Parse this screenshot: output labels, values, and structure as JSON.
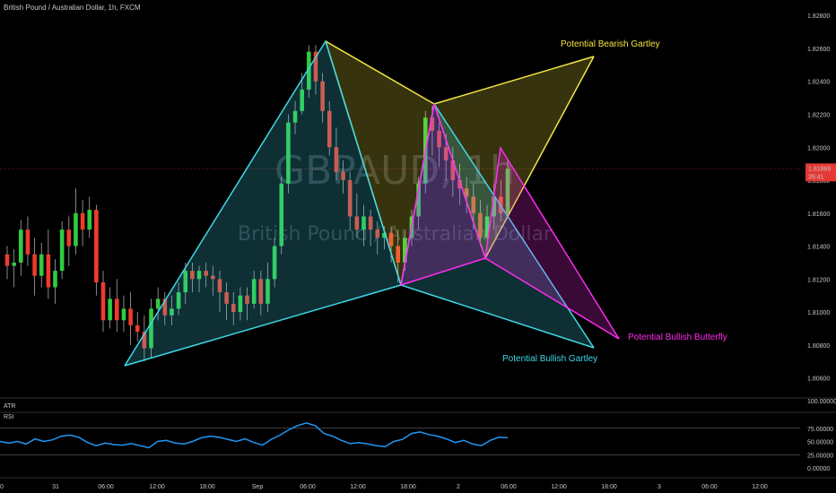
{
  "header": {
    "title": "British Pound / Australian Dollar, 1h, FXCM"
  },
  "watermark": {
    "symbol": "GBPAUD, 1h",
    "name": "British Pound / Australian Dollar"
  },
  "colors": {
    "up": "#26a69a",
    "up_bright": "#2ecc40",
    "down": "#ef3b2c",
    "bearish_pattern": "#f5e642",
    "bullish_gartley": "#3fd8e8",
    "bullish_butterfly": "#ff2cf1",
    "rsi_line": "#2196f3",
    "price_label": "#e53935"
  },
  "chart_data": [
    {
      "type": "candlestick",
      "symbol": "GBPAUD",
      "timeframe": "1h",
      "x_tick_labels": [
        "0",
        "31",
        "06:00",
        "12:00",
        "18:00",
        "Sep",
        "06:00",
        "12:00",
        "18:00",
        "2",
        "06:00",
        "12:00",
        "18:00",
        "3",
        "06:00",
        "12:00"
      ],
      "y_tick_labels": [
        "1.82800",
        "1.82600",
        "1.82400",
        "1.82200",
        "1.82000",
        "1.81800",
        "1.81600",
        "1.81400",
        "1.81200",
        "1.81000",
        "1.80800",
        "1.80600"
      ],
      "ylim": [
        1.805,
        1.8285
      ],
      "current_price": "1.81869",
      "countdown": "35:41",
      "candles": [
        [
          1.8135,
          1.8128,
          1.814,
          1.812
        ],
        [
          1.8128,
          1.813,
          1.8138,
          1.8115
        ],
        [
          1.813,
          1.815,
          1.8156,
          1.8122
        ],
        [
          1.815,
          1.8135,
          1.8158,
          1.8128
        ],
        [
          1.8135,
          1.8122,
          1.8145,
          1.811
        ],
        [
          1.8122,
          1.8135,
          1.8142,
          1.8115
        ],
        [
          1.8135,
          1.8115,
          1.815,
          1.8108
        ],
        [
          1.8115,
          1.8125,
          1.8132,
          1.8105
        ],
        [
          1.8125,
          1.815,
          1.8155,
          1.812
        ],
        [
          1.815,
          1.814,
          1.8158,
          1.8128
        ],
        [
          1.814,
          1.816,
          1.8175,
          1.8135
        ],
        [
          1.816,
          1.815,
          1.8168,
          1.814
        ],
        [
          1.815,
          1.8162,
          1.817,
          1.8145
        ],
        [
          1.8162,
          1.8118,
          1.8165,
          1.811
        ],
        [
          1.8118,
          1.8095,
          1.8125,
          1.8088
        ],
        [
          1.8095,
          1.8108,
          1.8115,
          1.809
        ],
        [
          1.8108,
          1.8095,
          1.812,
          1.8088
        ],
        [
          1.8095,
          1.8102,
          1.811,
          1.8088
        ],
        [
          1.8102,
          1.8092,
          1.8112,
          1.808
        ],
        [
          1.8092,
          1.8088,
          1.81,
          1.8082
        ],
        [
          1.8088,
          1.8078,
          1.8098,
          1.807
        ],
        [
          1.8078,
          1.8102,
          1.8108,
          1.8072
        ],
        [
          1.8102,
          1.8108,
          1.8115,
          1.8095
        ],
        [
          1.8108,
          1.8098,
          1.8112,
          1.8092
        ],
        [
          1.8098,
          1.8102,
          1.811,
          1.8092
        ],
        [
          1.8102,
          1.8112,
          1.8118,
          1.8098
        ],
        [
          1.8112,
          1.8125,
          1.813,
          1.8105
        ],
        [
          1.8125,
          1.812,
          1.813,
          1.8112
        ],
        [
          1.812,
          1.8125,
          1.8128,
          1.8112
        ],
        [
          1.8125,
          1.8122,
          1.813,
          1.8115
        ],
        [
          1.8122,
          1.812,
          1.8128,
          1.811
        ],
        [
          1.812,
          1.8112,
          1.8125,
          1.81
        ],
        [
          1.8112,
          1.8105,
          1.8118,
          1.8095
        ],
        [
          1.8105,
          1.81,
          1.8112,
          1.8092
        ],
        [
          1.81,
          1.811,
          1.8115,
          1.8095
        ],
        [
          1.811,
          1.8105,
          1.8115,
          1.8095
        ],
        [
          1.8105,
          1.812,
          1.8125,
          1.8102
        ],
        [
          1.812,
          1.8105,
          1.8125,
          1.8098
        ],
        [
          1.8105,
          1.812,
          1.813,
          1.81
        ],
        [
          1.812,
          1.814,
          1.8145,
          1.8115
        ],
        [
          1.814,
          1.8178,
          1.8182,
          1.8135
        ],
        [
          1.8178,
          1.8215,
          1.822,
          1.8172
        ],
        [
          1.8215,
          1.8222,
          1.8228,
          1.8208
        ],
        [
          1.8222,
          1.8235,
          1.8245,
          1.822
        ],
        [
          1.8235,
          1.8258,
          1.8262,
          1.823
        ],
        [
          1.8258,
          1.824,
          1.8262,
          1.8232
        ],
        [
          1.824,
          1.8222,
          1.8245,
          1.8215
        ],
        [
          1.8222,
          1.82,
          1.8228,
          1.8195
        ],
        [
          1.82,
          1.8185,
          1.8212,
          1.818
        ],
        [
          1.8185,
          1.818,
          1.8192,
          1.8172
        ],
        [
          1.818,
          1.8158,
          1.8185,
          1.815
        ],
        [
          1.8158,
          1.815,
          1.8172,
          1.8145
        ],
        [
          1.815,
          1.8158,
          1.8165,
          1.814
        ],
        [
          1.8158,
          1.815,
          1.8162,
          1.814
        ],
        [
          1.815,
          1.8145,
          1.8155,
          1.8135
        ],
        [
          1.8145,
          1.8148,
          1.8152,
          1.8138
        ],
        [
          1.8148,
          1.814,
          1.8152,
          1.813
        ],
        [
          1.814,
          1.813,
          1.815,
          1.8118
        ],
        [
          1.813,
          1.8145,
          1.815,
          1.8125
        ],
        [
          1.8145,
          1.8158,
          1.8162,
          1.814
        ],
        [
          1.8158,
          1.8178,
          1.8182,
          1.815
        ],
        [
          1.8178,
          1.8218,
          1.8222,
          1.8172
        ],
        [
          1.8218,
          1.821,
          1.8225,
          1.8195
        ],
        [
          1.821,
          1.82,
          1.8215,
          1.8188
        ],
        [
          1.82,
          1.8192,
          1.8208,
          1.818
        ],
        [
          1.8192,
          1.818,
          1.82,
          1.817
        ],
        [
          1.818,
          1.8175,
          1.819,
          1.8165
        ],
        [
          1.8175,
          1.817,
          1.8182,
          1.816
        ],
        [
          1.817,
          1.816,
          1.8178,
          1.815
        ],
        [
          1.816,
          1.8145,
          1.8168,
          1.814
        ],
        [
          1.8145,
          1.8158,
          1.8165,
          1.8138
        ],
        [
          1.8158,
          1.817,
          1.8178,
          1.815
        ],
        [
          1.817,
          1.816,
          1.818,
          1.8155
        ],
        [
          1.816,
          1.8187,
          1.8192,
          1.8158
        ]
      ],
      "patterns": [
        {
          "name": "Potential Bearish Gartley",
          "color_key": "bearish_pattern",
          "points": [
            [
              363,
              46
            ],
            [
              447,
              318
            ],
            [
              484,
              116
            ],
            [
              541,
              288
            ],
            [
              662,
              63
            ]
          ]
        },
        {
          "name": "Potential Bullish Gartley",
          "color_key": "bullish_gartley",
          "points": [
            [
              139,
              408
            ],
            [
              363,
              46
            ],
            [
              447,
              318
            ],
            [
              484,
              116
            ],
            [
              662,
              388
            ]
          ]
        },
        {
          "name": "Potential Bullish Butterfly",
          "color_key": "bullish_butterfly",
          "points": [
            [
              447,
              318
            ],
            [
              484,
              116
            ],
            [
              541,
              288
            ],
            [
              558,
              165
            ],
            [
              690,
              378
            ]
          ]
        }
      ]
    },
    {
      "type": "line",
      "name": "RSI",
      "y_tick_labels": [
        "100.00000",
        "75.00000",
        "50.00000",
        "25.00000",
        "0.00000"
      ],
      "ylim": [
        0,
        100
      ],
      "values": [
        50,
        47,
        50,
        45,
        55,
        50,
        53,
        60,
        62,
        58,
        48,
        42,
        47,
        44,
        43,
        46,
        42,
        38,
        50,
        52,
        47,
        45,
        50,
        57,
        60,
        58,
        54,
        50,
        55,
        48,
        43,
        54,
        62,
        72,
        80,
        85,
        80,
        65,
        60,
        52,
        46,
        48,
        45,
        42,
        40,
        50,
        54,
        65,
        68,
        63,
        60,
        55,
        48,
        52,
        45,
        42,
        52,
        58,
        57
      ]
    }
  ],
  "indicators": {
    "atr_label": "ATR",
    "rsi_label": "RSI"
  }
}
